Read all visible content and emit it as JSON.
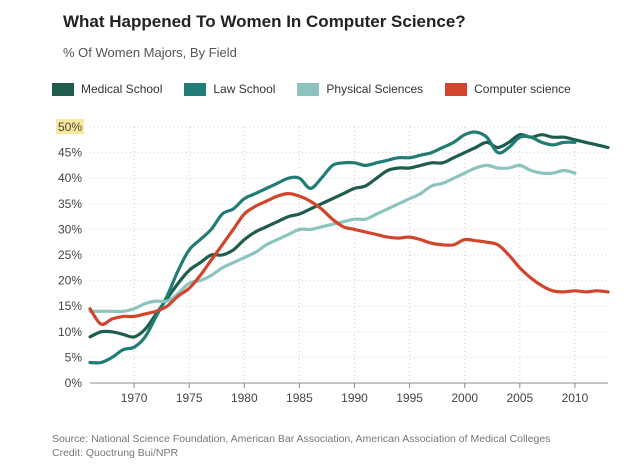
{
  "header": {
    "title": "What Happened To Women In Computer Science?",
    "subtitle": "% Of Women Majors, By Field"
  },
  "footer": {
    "source": "Source: National Science Foundation, American Bar Association, American Association of Medical Colleges",
    "credit": "Credit: Quoctrung Bui/NPR"
  },
  "colors": {
    "medical": "#1e5c4e",
    "law": "#1f7d75",
    "physical": "#8ec4c0",
    "cs": "#d0452b",
    "highlight": "#fae79a"
  },
  "chart_data": {
    "type": "line",
    "title": "What Happened To Women In Computer Science?",
    "subtitle": "% Of Women Majors, By Field",
    "xlabel": "",
    "ylabel": "",
    "xlim": [
      1966,
      2013
    ],
    "ylim": [
      0,
      50
    ],
    "xticks": [
      1970,
      1975,
      1980,
      1985,
      1990,
      1995,
      2000,
      2005,
      2010
    ],
    "yticks": [
      0,
      5,
      10,
      15,
      20,
      25,
      30,
      35,
      40,
      45,
      50
    ],
    "ytick_labels": [
      "0%",
      "5%",
      "10%",
      "15%",
      "20%",
      "25%",
      "30%",
      "35%",
      "40%",
      "45%",
      "50%"
    ],
    "highlighted_tick": "50%",
    "grid": true,
    "legend_position": "top",
    "series": [
      {
        "name": "Medical School",
        "color": "#1e5c4e",
        "points": [
          [
            1966,
            9
          ],
          [
            1967,
            10
          ],
          [
            1968,
            10
          ],
          [
            1969,
            9.5
          ],
          [
            1970,
            9
          ],
          [
            1971,
            10.5
          ],
          [
            1972,
            13.5
          ],
          [
            1973,
            16.5
          ],
          [
            1974,
            19.5
          ],
          [
            1975,
            22
          ],
          [
            1976,
            23.5
          ],
          [
            1977,
            25
          ],
          [
            1978,
            25
          ],
          [
            1979,
            26
          ],
          [
            1980,
            28
          ],
          [
            1981,
            29.5
          ],
          [
            1982,
            30.5
          ],
          [
            1983,
            31.5
          ],
          [
            1984,
            32.5
          ],
          [
            1985,
            33
          ],
          [
            1986,
            34
          ],
          [
            1987,
            35
          ],
          [
            1988,
            36
          ],
          [
            1989,
            37
          ],
          [
            1990,
            38
          ],
          [
            1991,
            38.5
          ],
          [
            1992,
            40
          ],
          [
            1993,
            41.5
          ],
          [
            1994,
            42
          ],
          [
            1995,
            42
          ],
          [
            1996,
            42.5
          ],
          [
            1997,
            43
          ],
          [
            1998,
            43
          ],
          [
            1999,
            44
          ],
          [
            2000,
            45
          ],
          [
            2001,
            46
          ],
          [
            2002,
            47
          ],
          [
            2003,
            46
          ],
          [
            2004,
            47
          ],
          [
            2005,
            48.5
          ],
          [
            2006,
            48
          ],
          [
            2007,
            48.5
          ],
          [
            2008,
            48
          ],
          [
            2009,
            48
          ],
          [
            2010,
            47.5
          ],
          [
            2011,
            47
          ],
          [
            2012,
            46.5
          ],
          [
            2013,
            46
          ]
        ]
      },
      {
        "name": "Law School",
        "color": "#1f7d75",
        "points": [
          [
            1966,
            4
          ],
          [
            1967,
            4
          ],
          [
            1968,
            5
          ],
          [
            1969,
            6.5
          ],
          [
            1970,
            7
          ],
          [
            1971,
            9
          ],
          [
            1972,
            13
          ],
          [
            1973,
            17
          ],
          [
            1974,
            22
          ],
          [
            1975,
            26
          ],
          [
            1976,
            28
          ],
          [
            1977,
            30
          ],
          [
            1978,
            33
          ],
          [
            1979,
            34
          ],
          [
            1980,
            36
          ],
          [
            1981,
            37
          ],
          [
            1982,
            38
          ],
          [
            1983,
            39
          ],
          [
            1984,
            40
          ],
          [
            1985,
            40
          ],
          [
            1986,
            38
          ],
          [
            1987,
            40
          ],
          [
            1988,
            42.5
          ],
          [
            1989,
            43
          ],
          [
            1990,
            43
          ],
          [
            1991,
            42.5
          ],
          [
            1992,
            43
          ],
          [
            1993,
            43.5
          ],
          [
            1994,
            44
          ],
          [
            1995,
            44
          ],
          [
            1996,
            44.5
          ],
          [
            1997,
            45
          ],
          [
            1998,
            46
          ],
          [
            1999,
            47
          ],
          [
            2000,
            48.5
          ],
          [
            2001,
            49
          ],
          [
            2002,
            48
          ],
          [
            2003,
            45
          ],
          [
            2004,
            46
          ],
          [
            2005,
            48
          ],
          [
            2006,
            48
          ],
          [
            2007,
            47
          ],
          [
            2008,
            46.5
          ],
          [
            2009,
            47
          ],
          [
            2010,
            47
          ]
        ]
      },
      {
        "name": "Physical Sciences",
        "color": "#8ec4c0",
        "points": [
          [
            1966,
            14
          ],
          [
            1967,
            14
          ],
          [
            1968,
            14
          ],
          [
            1969,
            14
          ],
          [
            1970,
            14.5
          ],
          [
            1971,
            15.5
          ],
          [
            1972,
            16
          ],
          [
            1973,
            16
          ],
          [
            1974,
            17.5
          ],
          [
            1975,
            19.5
          ],
          [
            1976,
            20
          ],
          [
            1977,
            21
          ],
          [
            1978,
            22.5
          ],
          [
            1979,
            23.5
          ],
          [
            1980,
            24.5
          ],
          [
            1981,
            25.5
          ],
          [
            1982,
            27
          ],
          [
            1983,
            28
          ],
          [
            1984,
            29
          ],
          [
            1985,
            30
          ],
          [
            1986,
            30
          ],
          [
            1987,
            30.5
          ],
          [
            1988,
            31
          ],
          [
            1989,
            31.5
          ],
          [
            1990,
            32
          ],
          [
            1991,
            32
          ],
          [
            1992,
            33
          ],
          [
            1993,
            34
          ],
          [
            1994,
            35
          ],
          [
            1995,
            36
          ],
          [
            1996,
            37
          ],
          [
            1997,
            38.5
          ],
          [
            1998,
            39
          ],
          [
            1999,
            40
          ],
          [
            2000,
            41
          ],
          [
            2001,
            42
          ],
          [
            2002,
            42.5
          ],
          [
            2003,
            42
          ],
          [
            2004,
            42
          ],
          [
            2005,
            42.5
          ],
          [
            2006,
            41.5
          ],
          [
            2007,
            41
          ],
          [
            2008,
            41
          ],
          [
            2009,
            41.5
          ],
          [
            2010,
            41
          ]
        ]
      },
      {
        "name": "Computer science",
        "color": "#d0452b",
        "points": [
          [
            1966,
            14.5
          ],
          [
            1967,
            11.5
          ],
          [
            1968,
            12.5
          ],
          [
            1969,
            13
          ],
          [
            1970,
            13
          ],
          [
            1971,
            13.5
          ],
          [
            1972,
            14
          ],
          [
            1973,
            15
          ],
          [
            1974,
            17
          ],
          [
            1975,
            18.5
          ],
          [
            1976,
            21
          ],
          [
            1977,
            24
          ],
          [
            1978,
            27
          ],
          [
            1979,
            30
          ],
          [
            1980,
            33
          ],
          [
            1981,
            34.5
          ],
          [
            1982,
            35.5
          ],
          [
            1983,
            36.5
          ],
          [
            1984,
            37
          ],
          [
            1985,
            36.5
          ],
          [
            1986,
            35.5
          ],
          [
            1987,
            34
          ],
          [
            1988,
            32
          ],
          [
            1989,
            30.5
          ],
          [
            1990,
            30
          ],
          [
            1991,
            29.5
          ],
          [
            1992,
            29
          ],
          [
            1993,
            28.5
          ],
          [
            1994,
            28.3
          ],
          [
            1995,
            28.5
          ],
          [
            1996,
            28
          ],
          [
            1997,
            27.3
          ],
          [
            1998,
            27
          ],
          [
            1999,
            27
          ],
          [
            2000,
            28
          ],
          [
            2001,
            27.8
          ],
          [
            2002,
            27.5
          ],
          [
            2003,
            27
          ],
          [
            2004,
            25
          ],
          [
            2005,
            22.5
          ],
          [
            2006,
            20.5
          ],
          [
            2007,
            19
          ],
          [
            2008,
            18
          ],
          [
            2009,
            17.8
          ],
          [
            2010,
            18
          ],
          [
            2011,
            17.8
          ],
          [
            2012,
            18
          ],
          [
            2013,
            17.8
          ]
        ]
      }
    ]
  }
}
